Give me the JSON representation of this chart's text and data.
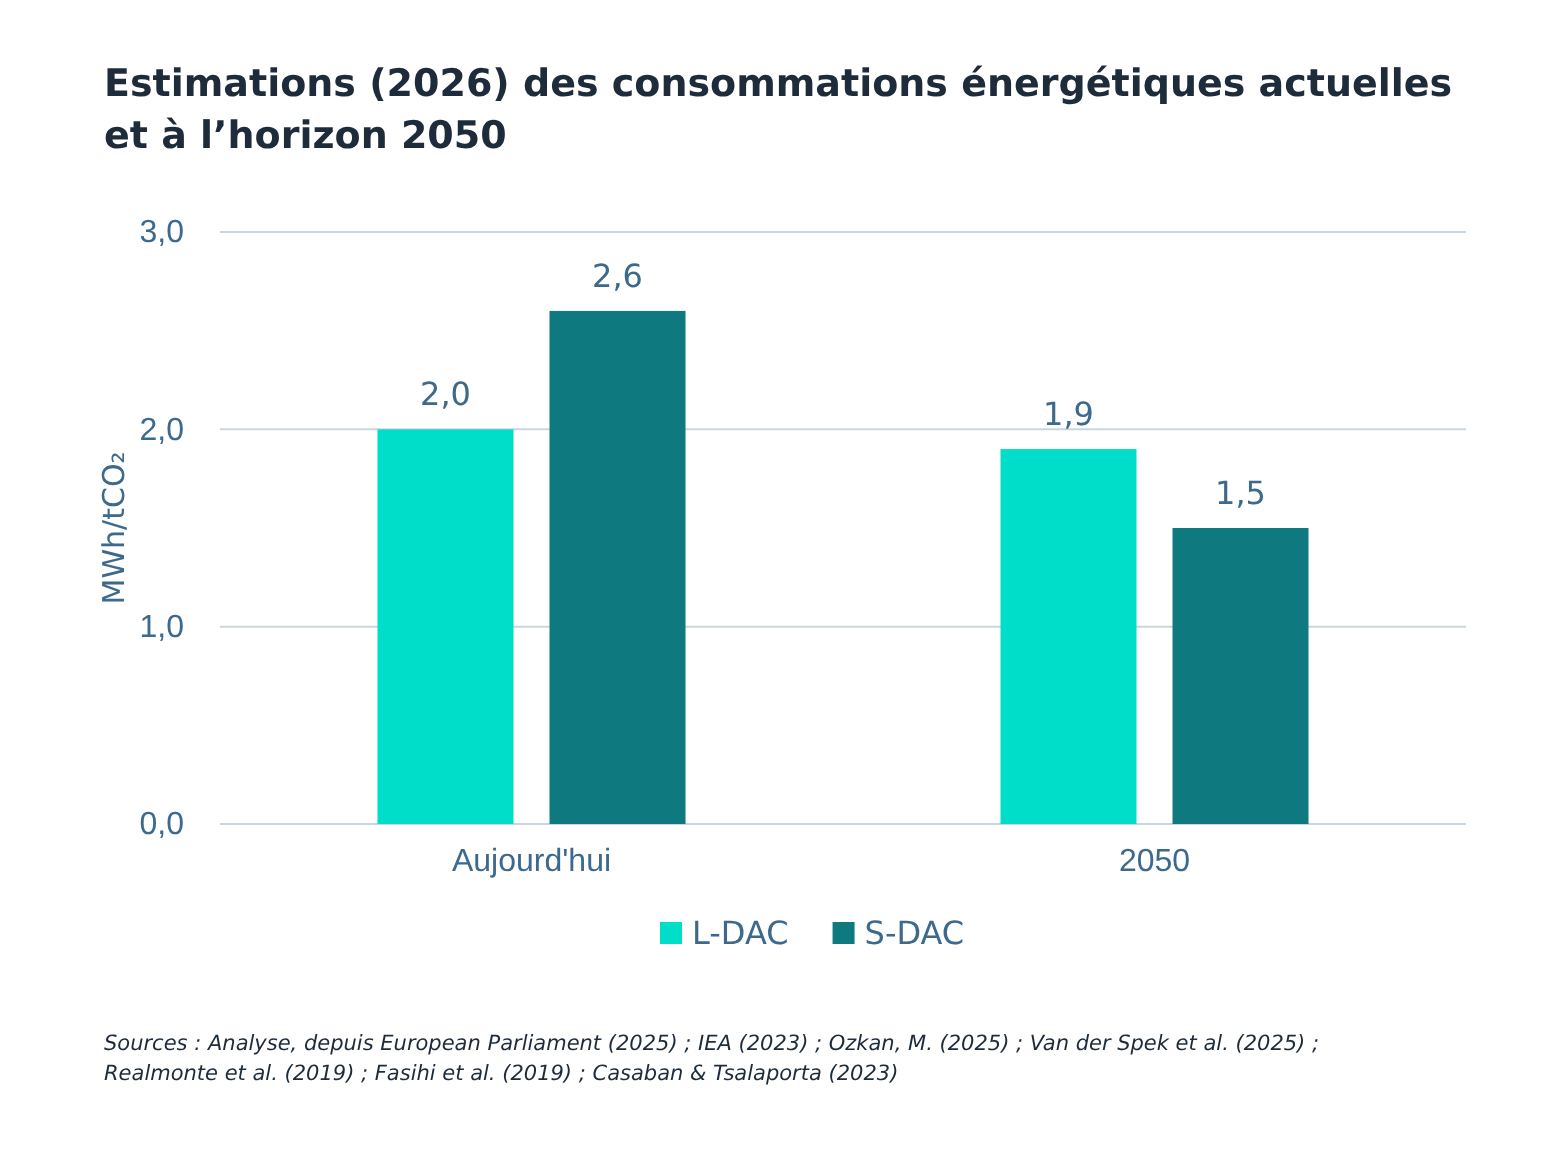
{
  "chart_data": {
    "type": "bar",
    "title": "Estimations (2026) des consommations énergétiques actuelles et à l’horizon 2050",
    "ylabel": "MWh/tCO₂",
    "categories": [
      "Aujourd'hui",
      "2050"
    ],
    "series": [
      {
        "name": "L-DAC",
        "color": "#00ddc9",
        "values": [
          2.0,
          1.9
        ],
        "value_labels": [
          "2,0",
          "1,9"
        ]
      },
      {
        "name": "S-DAC",
        "color": "#0e7a80",
        "values": [
          2.6,
          1.5
        ],
        "value_labels": [
          "2,6",
          "1,5"
        ]
      }
    ],
    "ylim": [
      0,
      3
    ],
    "yticks": [
      {
        "value": 0,
        "label": "0,0"
      },
      {
        "value": 1,
        "label": "1,0"
      },
      {
        "value": 2,
        "label": "2,0"
      },
      {
        "value": 3,
        "label": "3,0"
      }
    ],
    "grid": "y",
    "legend": "bottom",
    "annotations": [
      "Sources : Analyse, depuis European Parliament (2025) ; IEA (2023) ; Ozkan, M. (2025) ; Van der Spek et al. (2025) ;",
      "Realmonte et al. (2019) ; Fasihi et al. (2019) ; Casaban & Tsalaporta (2023)"
    ]
  }
}
